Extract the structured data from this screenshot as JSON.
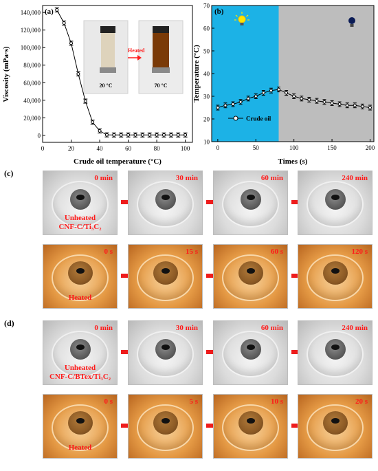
{
  "chart_data": [
    {
      "type": "line",
      "panel_label": "(a)",
      "xlabel": "Crude oil temperature (°C)",
      "ylabel": "Viscosity (mPa·s)",
      "xlim": [
        0,
        105
      ],
      "ylim": [
        -8000,
        148000
      ],
      "xticks": [
        "0",
        "20",
        "40",
        "60",
        "80",
        "100"
      ],
      "yticks": [
        "0",
        "20,000",
        "40,000",
        "60,000",
        "80,000",
        "100,000",
        "120,000",
        "140,000"
      ],
      "x": [
        10,
        15,
        20,
        25,
        30,
        35,
        40,
        45,
        50,
        55,
        60,
        65,
        70,
        75,
        80,
        85,
        90,
        95,
        100
      ],
      "series": [
        {
          "values": [
            143000,
            128000,
            105000,
            70000,
            39000,
            15000,
            5000,
            500,
            400,
            400,
            400,
            400,
            400,
            400,
            400,
            400,
            400,
            400,
            400
          ]
        }
      ],
      "inset": {
        "arrow_label": "Heated",
        "left_temp": "20 °C",
        "right_temp": "70 °C"
      }
    },
    {
      "type": "line",
      "panel_label": "(b)",
      "xlabel": "Times (s)",
      "ylabel": "Temperature (°C)",
      "xlim": [
        -8,
        205
      ],
      "ylim": [
        10,
        70
      ],
      "xticks": [
        "0",
        "50",
        "100",
        "150",
        "200"
      ],
      "yticks": [
        "10",
        "20",
        "30",
        "40",
        "50",
        "60",
        "70"
      ],
      "x": [
        0,
        10,
        20,
        30,
        40,
        50,
        60,
        70,
        80,
        90,
        100,
        110,
        120,
        130,
        140,
        150,
        160,
        170,
        180,
        190,
        200
      ],
      "series": [
        {
          "name": "Crude oil",
          "values": [
            25,
            26,
            26.5,
            27.5,
            29,
            30,
            31.5,
            32.5,
            33,
            31.5,
            30,
            29,
            28.5,
            28,
            27.5,
            27,
            26.5,
            26,
            26,
            25.5,
            25
          ]
        }
      ],
      "regions": {
        "light_color": "#1cb2e6",
        "dark_color": "#bdbdbd",
        "switch_at": 80
      }
    }
  ],
  "panel_c": {
    "tag": "(c)",
    "row1": {
      "times": [
        "0 min",
        "30 min",
        "60 min",
        "240 min"
      ],
      "label_line1": "Unheated",
      "label_line2": "CNF-C/Ti₃C₂"
    },
    "row2": {
      "times": [
        "0 s",
        "15 s",
        "60 s",
        "120 s"
      ],
      "label": "Heated"
    }
  },
  "panel_d": {
    "tag": "(d)",
    "row1": {
      "times": [
        "0 min",
        "30 min",
        "60 min",
        "240 min"
      ],
      "label_line1": "Unheated",
      "label_line2": "CNF-C/BTex/Ti₃C₂"
    },
    "row2": {
      "times": [
        "0 s",
        "5 s",
        "10 s",
        "20 s"
      ],
      "label": "Heated"
    }
  },
  "colors": {
    "accent_red": "#ff1a1a",
    "arrow_red": "#ee1c1c"
  }
}
